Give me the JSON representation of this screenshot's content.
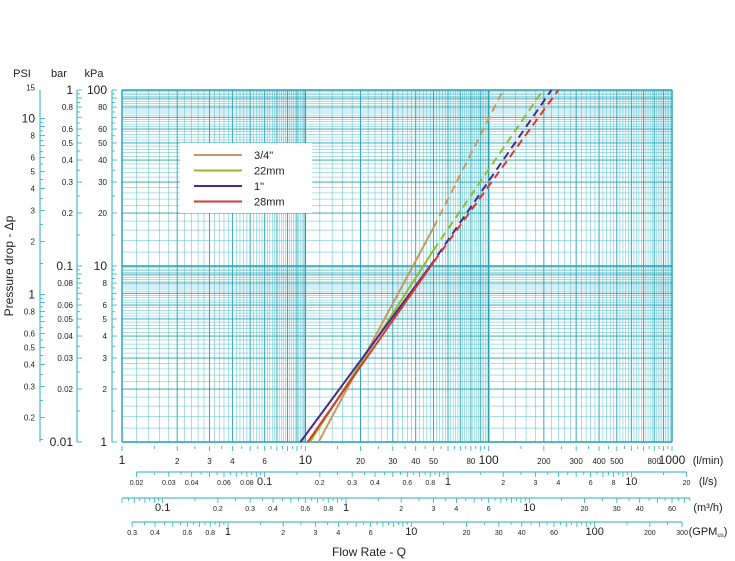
{
  "chart_data": {
    "type": "line",
    "scale": "log-log",
    "xlim": [
      1,
      1000
    ],
    "ylim_kpa": [
      1,
      100
    ],
    "xlabel": "Flow Rate - Q",
    "ylabel": "Pressure drop - Δp",
    "grid": true,
    "legend_position": "top-left",
    "colors": {
      "grid": "#3fb8c8",
      "major_grid": "#1f9fb3",
      "axis_ink": "#2aaebf"
    },
    "series": [
      {
        "name": "3/4\"",
        "color": "#c9995f",
        "solid": [
          [
            11.8,
            1
          ],
          [
            50,
            16.5
          ]
        ],
        "dashed": [
          [
            50,
            16.5
          ],
          [
            120,
            100
          ]
        ]
      },
      {
        "name": "22mm",
        "color": "#8fbd2e",
        "solid": [
          [
            10.6,
            1
          ],
          [
            50,
            12.3
          ]
        ],
        "dashed": [
          [
            50,
            12.3
          ],
          [
            198,
            100
          ]
        ]
      },
      {
        "name": "1\"",
        "color": "#4b2a8a",
        "solid": [
          [
            9.4,
            1
          ],
          [
            48,
            10
          ]
        ],
        "dashed": [
          [
            48,
            10
          ],
          [
            220,
            100
          ]
        ]
      },
      {
        "name": "28mm",
        "color": "#d63a2f",
        "solid": [
          [
            10.3,
            1
          ],
          [
            50,
            10.5
          ]
        ],
        "dashed": [
          [
            50,
            10.5
          ],
          [
            240,
            100
          ]
        ]
      }
    ],
    "y_axes": [
      {
        "unit": "PSI",
        "factor": 0.145038,
        "ticks": [
          [
            "15",
            15
          ],
          [
            "10",
            10
          ],
          [
            "8",
            8
          ],
          [
            "6",
            6
          ],
          [
            "5",
            5
          ],
          [
            "4",
            4
          ],
          [
            "3",
            3
          ],
          [
            "2",
            2
          ],
          [
            "1",
            1
          ],
          [
            "0.8",
            0.8
          ],
          [
            "0.6",
            0.6
          ],
          [
            "0.5",
            0.5
          ],
          [
            "0.4",
            0.4
          ],
          [
            "0.3",
            0.3
          ],
          [
            "0.2",
            0.2
          ]
        ],
        "big": [
          "10",
          "1"
        ]
      },
      {
        "unit": "bar",
        "factor": 0.01,
        "ticks": [
          [
            "1",
            1
          ],
          [
            "0.8",
            0.8
          ],
          [
            "0.6",
            0.6
          ],
          [
            "0.5",
            0.5
          ],
          [
            "0.4",
            0.4
          ],
          [
            "0.3",
            0.3
          ],
          [
            "0.2",
            0.2
          ],
          [
            "0.1",
            0.1
          ],
          [
            "0.08",
            0.08
          ],
          [
            "0.06",
            0.06
          ],
          [
            "0.05",
            0.05
          ],
          [
            "0.04",
            0.04
          ],
          [
            "0.03",
            0.03
          ],
          [
            "0.02",
            0.02
          ],
          [
            "0.01",
            0.01
          ]
        ],
        "big": [
          "1",
          "0.1",
          "0.01"
        ]
      },
      {
        "unit": "kPa",
        "factor": 1,
        "ticks": [
          [
            "100",
            100
          ],
          [
            "80",
            80
          ],
          [
            "60",
            60
          ],
          [
            "50",
            50
          ],
          [
            "40",
            40
          ],
          [
            "30",
            30
          ],
          [
            "20",
            20
          ],
          [
            "10",
            10
          ],
          [
            "8",
            8
          ],
          [
            "6",
            6
          ],
          [
            "5",
            5
          ],
          [
            "4",
            4
          ],
          [
            "3",
            3
          ],
          [
            "2",
            2
          ],
          [
            "1",
            1
          ]
        ],
        "big": [
          "100",
          "10",
          "1"
        ]
      }
    ],
    "x_axes": [
      {
        "unit": "(l/min)",
        "factor": 1,
        "ticks": [
          [
            "1",
            1
          ],
          [
            "2",
            2
          ],
          [
            "3",
            3
          ],
          [
            "4",
            4
          ],
          [
            "6",
            6
          ],
          [
            "10",
            10
          ],
          [
            "20",
            20
          ],
          [
            "30",
            30
          ],
          [
            "40",
            40
          ],
          [
            "50",
            50
          ],
          [
            "80",
            80
          ],
          [
            "100",
            100
          ],
          [
            "200",
            200
          ],
          [
            "300",
            300
          ],
          [
            "400",
            400
          ],
          [
            "500",
            500
          ],
          [
            "800",
            800
          ],
          [
            "1000",
            1000
          ]
        ],
        "big": [
          "1",
          "10",
          "100",
          "1000"
        ]
      },
      {
        "unit": "(l/s)",
        "factor": 0.0166667,
        "ticks": [
          [
            "0.02",
            0.02
          ],
          [
            "0.03",
            0.03
          ],
          [
            "0.04",
            0.04
          ],
          [
            "0.06",
            0.06
          ],
          [
            "0.08",
            0.08
          ],
          [
            "0.1",
            0.1
          ],
          [
            "0.2",
            0.2
          ],
          [
            "0.3",
            0.3
          ],
          [
            "0.4",
            0.4
          ],
          [
            "0.6",
            0.6
          ],
          [
            "0.8",
            0.8
          ],
          [
            "1",
            1
          ],
          [
            "2",
            2
          ],
          [
            "3",
            3
          ],
          [
            "4",
            4
          ],
          [
            "6",
            6
          ],
          [
            "8",
            8
          ],
          [
            "10",
            10
          ],
          [
            "20",
            20
          ]
        ],
        "big": [
          "0.1",
          "1",
          "10"
        ]
      },
      {
        "unit": "(m³/h)",
        "factor": 0.06,
        "ticks": [
          [
            "0.1",
            0.1
          ],
          [
            "0.2",
            0.2
          ],
          [
            "0.3",
            0.3
          ],
          [
            "0.4",
            0.4
          ],
          [
            "0.6",
            0.6
          ],
          [
            "0.8",
            0.8
          ],
          [
            "1",
            1
          ],
          [
            "2",
            2
          ],
          [
            "3",
            3
          ],
          [
            "4",
            4
          ],
          [
            "6",
            6
          ],
          [
            "10",
            10
          ],
          [
            "20",
            20
          ],
          [
            "30",
            30
          ],
          [
            "40",
            40
          ],
          [
            "60",
            60
          ]
        ],
        "big": [
          "0.1",
          "1",
          "10"
        ]
      },
      {
        "unit": "(GPM",
        "unit_sub": "us",
        "unit_close": ")",
        "factor": 0.264172,
        "ticks": [
          [
            "0.3",
            0.3
          ],
          [
            "0.4",
            0.4
          ],
          [
            "0.6",
            0.6
          ],
          [
            "0.8",
            0.8
          ],
          [
            "1",
            1
          ],
          [
            "2",
            2
          ],
          [
            "3",
            3
          ],
          [
            "4",
            4
          ],
          [
            "6",
            6
          ],
          [
            "10",
            10
          ],
          [
            "20",
            20
          ],
          [
            "30",
            30
          ],
          [
            "40",
            40
          ],
          [
            "60",
            60
          ],
          [
            "100",
            100
          ],
          [
            "200",
            200
          ],
          [
            "300",
            300
          ]
        ],
        "big": [
          "1",
          "10",
          "100"
        ]
      }
    ]
  }
}
